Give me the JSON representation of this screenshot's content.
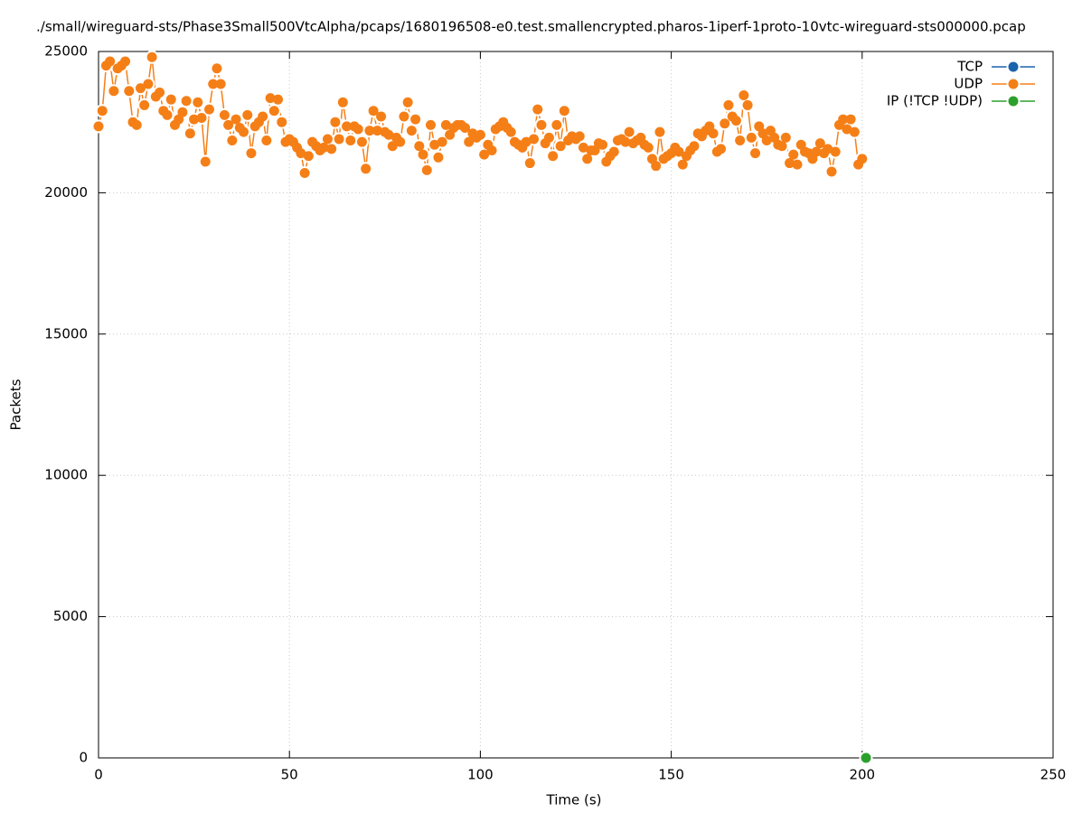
{
  "chart_data": {
    "type": "line",
    "title": "./small/wireguard-sts/Phase3Small500VtcAlpha/pcaps/1680196508-e0.test.smallencrypted.pharos-1iperf-1proto-10vtc-wireguard-sts000000.pcap",
    "x_label": "Time (s)",
    "y_label": "Packets",
    "xlim": [
      0,
      250
    ],
    "xticks": [
      0,
      50,
      100,
      150,
      200,
      250
    ],
    "ylim": [
      0,
      25000
    ],
    "yticks": [
      0,
      5000,
      10000,
      15000,
      20000,
      25000
    ],
    "grid": true,
    "legend": "top-right",
    "series": [
      {
        "name": "TCP",
        "color": "#1a63ad",
        "x": [],
        "values": []
      },
      {
        "name": "UDP",
        "color": "#f57f17",
        "x": [
          0,
          1,
          2,
          3,
          4,
          5,
          6,
          7,
          8,
          9,
          10,
          11,
          12,
          13,
          14,
          15,
          16,
          17,
          18,
          19,
          20,
          21,
          22,
          23,
          24,
          25,
          26,
          27,
          28,
          29,
          30,
          31,
          32,
          33,
          34,
          35,
          36,
          37,
          38,
          39,
          40,
          41,
          42,
          43,
          44,
          45,
          46,
          47,
          48,
          49,
          50,
          51,
          52,
          53,
          54,
          55,
          56,
          57,
          58,
          59,
          60,
          61,
          62,
          63,
          64,
          65,
          66,
          67,
          68,
          69,
          70,
          71,
          72,
          73,
          74,
          75,
          76,
          77,
          78,
          79,
          80,
          81,
          82,
          83,
          84,
          85,
          86,
          87,
          88,
          89,
          90,
          91,
          92,
          93,
          94,
          95,
          96,
          97,
          98,
          99,
          100,
          101,
          102,
          103,
          104,
          105,
          106,
          107,
          108,
          109,
          110,
          111,
          112,
          113,
          114,
          115,
          116,
          117,
          118,
          119,
          120,
          121,
          122,
          123,
          124,
          125,
          126,
          127,
          128,
          129,
          130,
          131,
          132,
          133,
          134,
          135,
          136,
          137,
          138,
          139,
          140,
          141,
          142,
          143,
          144,
          145,
          146,
          147,
          148,
          149,
          150,
          151,
          152,
          153,
          154,
          155,
          156,
          157,
          158,
          159,
          160,
          161,
          162,
          163,
          164,
          165,
          166,
          167,
          168,
          169,
          170,
          171,
          172,
          173,
          174,
          175,
          176,
          177,
          178,
          179,
          180,
          181,
          182,
          183,
          184,
          185,
          186,
          187,
          188,
          189,
          190,
          191,
          192,
          193,
          194,
          195,
          196,
          197,
          198,
          199,
          200
        ],
        "values": [
          22350,
          22900,
          24500,
          24650,
          23600,
          24400,
          24500,
          24650,
          23600,
          22500,
          22400,
          23700,
          23100,
          23850,
          24800,
          23400,
          23550,
          22900,
          22750,
          23300,
          22400,
          22600,
          22850,
          23250,
          22100,
          22600,
          23200,
          22650,
          21100,
          22950,
          23850,
          24400,
          23850,
          22750,
          22400,
          21850,
          22600,
          22300,
          22150,
          22750,
          21400,
          22350,
          22500,
          22700,
          21850,
          23350,
          22900,
          23300,
          22500,
          21800,
          21900,
          21800,
          21600,
          21400,
          20700,
          21300,
          21800,
          21650,
          21500,
          21600,
          21900,
          21550,
          22500,
          21900,
          23200,
          22350,
          21850,
          22350,
          22250,
          21800,
          20850,
          22200,
          22900,
          22200,
          22700,
          22150,
          22050,
          21650,
          21950,
          21800,
          22700,
          23200,
          22200,
          22600,
          21650,
          21350,
          20800,
          22400,
          21700,
          21250,
          21800,
          22400,
          22050,
          22300,
          22400,
          22400,
          22300,
          21800,
          22100,
          21950,
          22050,
          21350,
          21700,
          21500,
          22250,
          22350,
          22500,
          22300,
          22150,
          21800,
          21700,
          21600,
          21800,
          21050,
          21900,
          22950,
          22400,
          21750,
          21950,
          21300,
          22400,
          21650,
          22900,
          21850,
          22000,
          21900,
          22000,
          21600,
          21200,
          21500,
          21500,
          21750,
          21700,
          21100,
          21300,
          21450,
          21850,
          21900,
          21800,
          22150,
          21750,
          21850,
          21950,
          21700,
          21600,
          21200,
          20950,
          22150,
          21200,
          21300,
          21400,
          21600,
          21450,
          21000,
          21300,
          21500,
          21650,
          22100,
          22000,
          22200,
          22350,
          22100,
          21450,
          21550,
          22450,
          23100,
          22700,
          22550,
          21850,
          23450,
          23100,
          21950,
          21400,
          22350,
          22100,
          21850,
          22200,
          21950,
          21700,
          21650,
          21950,
          21050,
          21350,
          21000,
          21700,
          21450,
          21400,
          21200,
          21450,
          21750,
          21400,
          21550,
          20750,
          21450,
          22400,
          22600,
          22250,
          22600,
          22150,
          21000,
          21200
        ]
      },
      {
        "name": "IP (!TCP  !UDP)",
        "color": "#2ca02c",
        "x": [
          201
        ],
        "values": [
          0
        ]
      }
    ]
  }
}
